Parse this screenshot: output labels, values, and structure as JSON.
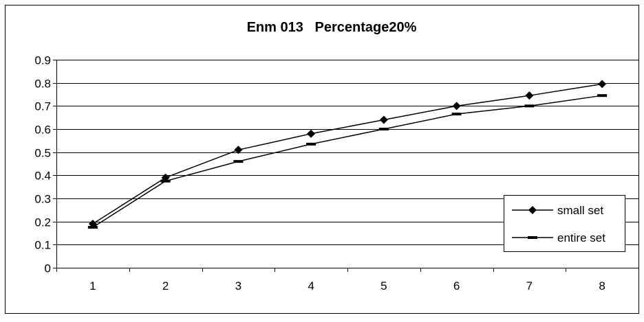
{
  "chart_data": {
    "type": "line",
    "title": "Enm 013   Percentage20%",
    "xlabel": "",
    "ylabel": "",
    "categories": [
      "1",
      "2",
      "3",
      "4",
      "5",
      "6",
      "7",
      "8"
    ],
    "ylim": [
      0,
      0.9
    ],
    "yticks": [
      "0",
      "0.1",
      "0.2",
      "0.3",
      "0.4",
      "0.5",
      "0.6",
      "0.7",
      "0.8",
      "0.9"
    ],
    "grid": true,
    "legend_position": "bottom-right",
    "series": [
      {
        "name": "small set",
        "marker": "diamond",
        "color": "#000000",
        "values": [
          0.19,
          0.39,
          0.51,
          0.58,
          0.64,
          0.7,
          0.745,
          0.795
        ]
      },
      {
        "name": "entire set",
        "marker": "dash",
        "color": "#000000",
        "values": [
          0.175,
          0.375,
          0.46,
          0.535,
          0.6,
          0.665,
          0.7,
          0.745
        ]
      }
    ]
  }
}
